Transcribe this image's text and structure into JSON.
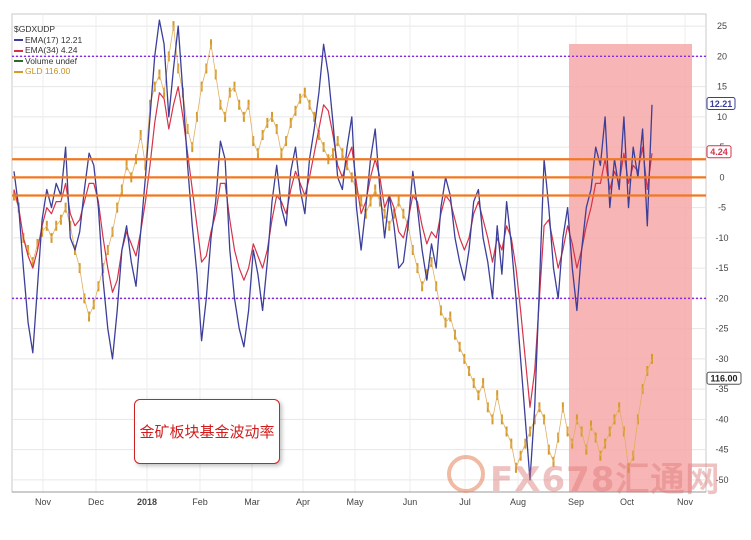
{
  "chart_data": {
    "type": "line",
    "symbol": "$GDXUDP",
    "series": [
      {
        "name": "EMA(17) 12.21",
        "color": "#3b3f9a",
        "last": 12.21
      },
      {
        "name": "EMA(34) 4.24",
        "color": "#d6334a",
        "last": 4.24
      },
      {
        "name": "Volume undef",
        "color": "#2b6b2b"
      },
      {
        "name": "GLD 116.00",
        "color": "#d69a2a",
        "last": 116.0
      }
    ],
    "x_ticks": [
      "Nov",
      "Dec",
      "2018",
      "Feb",
      "Mar",
      "Apr",
      "May",
      "Jun",
      "Jul",
      "Aug",
      "Sep",
      "Oct",
      "Nov"
    ],
    "y_ticks": [
      25,
      20,
      15,
      10,
      5,
      0,
      -5,
      -10,
      -15,
      -20,
      -25,
      -30,
      -35,
      -40,
      -45,
      -50
    ],
    "ylim": [
      -52,
      27
    ],
    "badges": {
      "ema17": "12.21",
      "ema34": "4.24",
      "gld": "116.00"
    },
    "reference_lines_dotted": [
      20,
      -20
    ],
    "reference_lines_orange": [
      3,
      0,
      -3
    ],
    "highlight_region": [
      "Sep",
      "Nov"
    ],
    "highlight_color": "#f7a8a8",
    "ema17_values": [
      1,
      -5,
      -15,
      -24,
      -29,
      -18,
      -7,
      -2,
      -5,
      -1,
      -3,
      5,
      -10,
      -12,
      -9,
      -2,
      4,
      2,
      -5,
      -17,
      -25,
      -30,
      -22,
      -12,
      -8,
      -14,
      -18,
      -9,
      0,
      10,
      20,
      26,
      22,
      10,
      18,
      25,
      14,
      2,
      -8,
      -16,
      -27,
      -20,
      -10,
      -4,
      6,
      3,
      -12,
      -20,
      -25,
      -28,
      -22,
      -12,
      -16,
      -22,
      -14,
      -4,
      2,
      -5,
      -8,
      1,
      5,
      -2,
      -6,
      3,
      8,
      14,
      22,
      17,
      9,
      0,
      -2,
      5,
      10,
      -5,
      -12,
      -5,
      3,
      8,
      -2,
      -10,
      -3,
      -8,
      -15,
      -14,
      -8,
      1,
      -5,
      -12,
      -17,
      -11,
      -15,
      -5,
      0,
      -3,
      -10,
      -14,
      -17,
      -12,
      -4,
      -2,
      -10,
      -14,
      -20,
      -8,
      -16,
      -4,
      -11,
      -20,
      -30,
      -40,
      -50,
      -38,
      -18,
      3,
      -5,
      -15,
      -20,
      -10,
      -5,
      -15,
      -22,
      -12,
      -5,
      -2,
      5,
      2,
      10,
      -5,
      3,
      -2,
      10,
      -5,
      5,
      0,
      8,
      -8,
      12
    ],
    "ema34_values": [
      -2,
      -5,
      -10,
      -13,
      -15,
      -12,
      -8,
      -5,
      -6,
      -4,
      -4,
      -1,
      -6,
      -8,
      -7,
      -4,
      -1,
      -1,
      -4,
      -10,
      -15,
      -19,
      -17,
      -12,
      -9,
      -11,
      -13,
      -9,
      -4,
      2,
      9,
      14,
      13,
      8,
      12,
      15,
      10,
      4,
      -2,
      -8,
      -14,
      -13,
      -9,
      -6,
      -1,
      -1,
      -7,
      -12,
      -15,
      -17,
      -15,
      -11,
      -13,
      -15,
      -12,
      -7,
      -3,
      -4,
      -6,
      -2,
      1,
      -1,
      -3,
      0,
      4,
      8,
      12,
      11,
      7,
      2,
      0,
      3,
      5,
      -1,
      -6,
      -4,
      0,
      3,
      0,
      -5,
      -3,
      -5,
      -9,
      -10,
      -7,
      -3,
      -4,
      -8,
      -11,
      -9,
      -10,
      -6,
      -3,
      -4,
      -7,
      -10,
      -12,
      -10,
      -6,
      -4,
      -7,
      -10,
      -14,
      -10,
      -12,
      -8,
      -10,
      -15,
      -22,
      -30,
      -38,
      -32,
      -20,
      -8,
      -7,
      -11,
      -15,
      -12,
      -8,
      -11,
      -15,
      -12,
      -8,
      -5,
      -1,
      -1,
      3,
      -2,
      1,
      -1,
      4,
      -1,
      2,
      1,
      5,
      -2,
      4
    ],
    "gld_values": [
      -3,
      -5,
      -10,
      -12,
      -14,
      -11,
      -9,
      -8,
      -10,
      -8,
      -7,
      -5,
      -8,
      -12,
      -15,
      -20,
      -23,
      -21,
      -18,
      -15,
      -12,
      -9,
      -5,
      -2,
      2,
      0,
      3,
      7,
      2,
      12,
      15,
      17,
      14,
      20,
      25,
      18,
      14,
      8,
      5,
      10,
      15,
      18,
      22,
      17,
      12,
      10,
      14,
      15,
      12,
      10,
      12,
      6,
      4,
      7,
      9,
      10,
      8,
      4,
      6,
      9,
      11,
      13,
      14,
      12,
      10,
      7,
      5,
      3,
      4,
      6,
      4,
      2,
      0,
      -2,
      -4,
      -6,
      -4,
      -2,
      -4,
      -6,
      -8,
      -6,
      -4,
      -6,
      -8,
      -12,
      -15,
      -18,
      -16,
      -14,
      -18,
      -22,
      -24,
      -23,
      -26,
      -28,
      -30,
      -32,
      -34,
      -36,
      -34,
      -38,
      -40,
      -36,
      -40,
      -42,
      -44,
      -48,
      -46,
      -44,
      -42,
      -40,
      -38,
      -40,
      -45,
      -47,
      -43,
      -38,
      -42,
      -44,
      -40,
      -42,
      -45,
      -41,
      -43,
      -46,
      -44,
      -42,
      -40,
      -38,
      -42,
      -48,
      -46,
      -40,
      -35,
      -32,
      -30
    ]
  },
  "annotation": "金矿板块基金波动率",
  "watermark": "FX678汇通网"
}
